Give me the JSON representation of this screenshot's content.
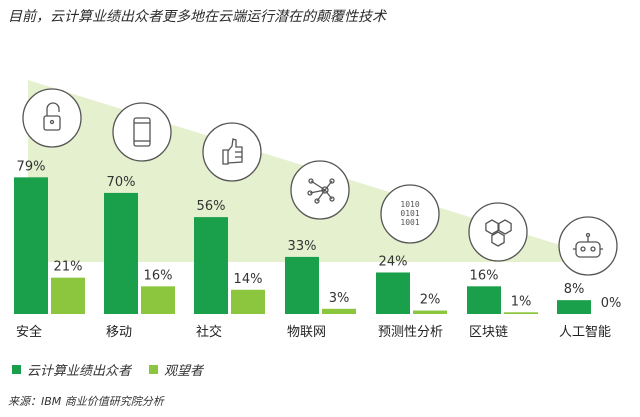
{
  "title": "目前，云计算业绩出众者更多地在云端运行潜在的颠覆性技术",
  "legend": {
    "leaders": "云计算业绩出众者",
    "watchers": "观望者"
  },
  "source": "来源：IBM 商业价值研究院分析",
  "colors": {
    "leaders": "#1aa04a",
    "watchers": "#8cc63f",
    "triangle": "#e5f0cf",
    "icon_stroke": "#555555"
  },
  "chart_data": {
    "type": "bar",
    "categories": [
      "安全",
      "移动",
      "社交",
      "物联网",
      "预测性分析",
      "区块链",
      "人工智能"
    ],
    "series": [
      {
        "name": "云计算业绩出众者",
        "values": [
          79,
          70,
          56,
          33,
          24,
          16,
          8
        ]
      },
      {
        "name": "观望者",
        "values": [
          21,
          16,
          14,
          3,
          2,
          1,
          0
        ]
      }
    ],
    "value_labels": {
      "leaders": [
        "79%",
        "70%",
        "56%",
        "33%",
        "24%",
        "16%",
        "8%"
      ],
      "watchers": [
        "21%",
        "16%",
        "14%",
        "3%",
        "2%",
        "1%",
        "0%"
      ]
    },
    "icons": [
      "lock-icon",
      "mobile-icon",
      "thumbs-up-icon",
      "network-icon",
      "binary-data-icon",
      "hexagons-icon",
      "robot-icon"
    ],
    "ylim": [
      0,
      100
    ],
    "legend_position": "bottom-left"
  }
}
